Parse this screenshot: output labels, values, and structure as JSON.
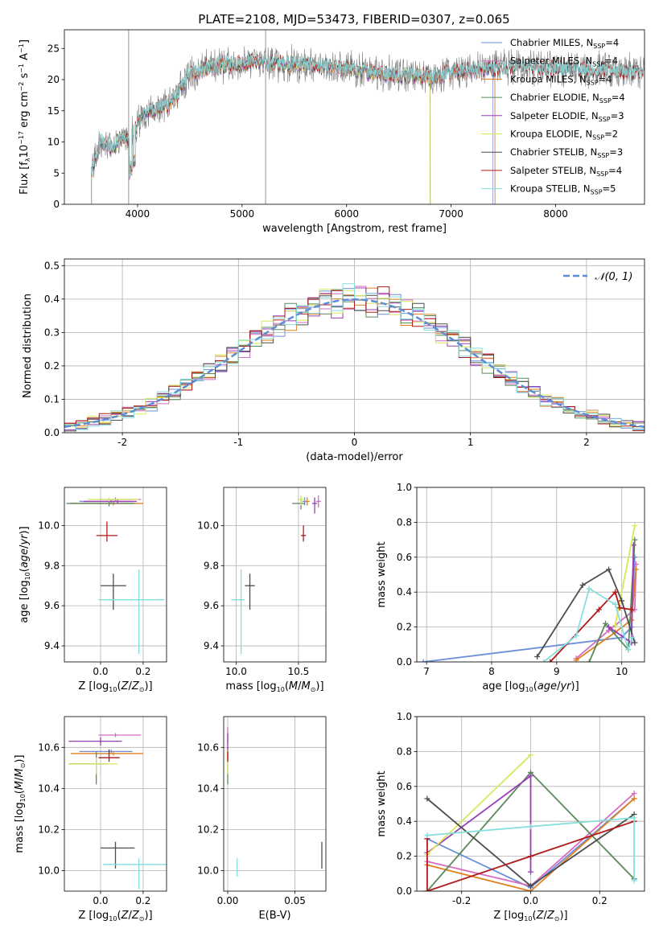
{
  "figure_title": "PLATE=2108, MJD=53473, FIBERID=0307, z=0.065",
  "colors": {
    "Chabrier MILES": "#6c8fd8",
    "Salpeter MILES": "#d46cc0",
    "Kroupa MILES": "#e0801f",
    "Chabrier ELODIE": "#5a8a5a",
    "Salpeter ELODIE": "#9b3db5",
    "Kroupa ELODIE": "#d6e85a",
    "Chabrier STELIB": "#4d4d4d",
    "Salpeter STELIB": "#b01a1a",
    "Kroupa STELIB": "#86dede",
    "gaussian": "#5b8ed6"
  },
  "chart_data": [
    {
      "id": "spectrum",
      "type": "line",
      "title": "PLATE=2108, MJD=53473, FIBERID=0307, z=0.065",
      "xlabel": "wavelength [Angstrom, rest frame]",
      "ylabel": "Flux [f_λ 10^-17 erg cm^-2 s^-1 A^-1]",
      "xlim": [
        3300,
        8850
      ],
      "ylim": [
        0,
        28
      ],
      "xticks": [
        4000,
        5000,
        6000,
        7000,
        8000
      ],
      "yticks": [
        0,
        5,
        10,
        15,
        20,
        25
      ],
      "legend_position": "top-right",
      "legend": [
        {
          "name": "Chabrier MILES",
          "label": "Chabrier MILES, N",
          "sub": "SSP",
          "tail": "=4"
        },
        {
          "name": "Salpeter MILES",
          "label": "Salpeter MILES, N",
          "sub": "SSP",
          "tail": "=4"
        },
        {
          "name": "Kroupa MILES",
          "label": "Kroupa MILES, N",
          "sub": "SSP",
          "tail": "=4"
        },
        {
          "name": "Chabrier ELODIE",
          "label": "Chabrier ELODIE, N",
          "sub": "SSP",
          "tail": "=4"
        },
        {
          "name": "Salpeter ELODIE",
          "label": "Salpeter ELODIE, N",
          "sub": "SSP",
          "tail": "=3"
        },
        {
          "name": "Kroupa ELODIE",
          "label": "Kroupa ELODIE, N",
          "sub": "SSP",
          "tail": "=2"
        },
        {
          "name": "Chabrier STELIB",
          "label": "Chabrier STELIB, N",
          "sub": "SSP",
          "tail": "=3"
        },
        {
          "name": "Salpeter STELIB",
          "label": "Salpeter STELIB, N",
          "sub": "SSP",
          "tail": "=4"
        },
        {
          "name": "Kroupa STELIB",
          "label": "Kroupa STELIB, N",
          "sub": "SSP",
          "tail": "=5"
        }
      ],
      "continuum": {
        "x": [
          3560,
          3650,
          3750,
          3850,
          3920,
          4000,
          4100,
          4200,
          4300,
          4400,
          4500,
          4700,
          4900,
          5100,
          5300,
          5500,
          5800,
          6100,
          6400,
          6800,
          7200,
          7600,
          8000,
          8400,
          8850
        ],
        "y": [
          5,
          10,
          9,
          11,
          10,
          13,
          15,
          15.5,
          16,
          18,
          21,
          22,
          22.5,
          23,
          22.5,
          22.5,
          22,
          21.5,
          21,
          20.5,
          21.5,
          22,
          21.8,
          21.5,
          21
        ]
      },
      "model_ends": {
        "Chabrier MILES": 7400,
        "Salpeter MILES": 7420,
        "Kroupa MILES": 7420,
        "Chabrier ELODIE": 6800,
        "Salpeter ELODIE": 6800,
        "Kroupa ELODIE": 6800
      },
      "data_spikes": [
        3915,
        5225
      ]
    },
    {
      "id": "residuals",
      "type": "histogram",
      "xlabel": "(data-model)/error",
      "ylabel": "Normed distribution",
      "xlim": [
        -2.5,
        2.5
      ],
      "ylim": [
        0,
        0.52
      ],
      "xticks": [
        -2,
        -1,
        0,
        1,
        2
      ],
      "yticks": [
        0,
        0.1,
        0.2,
        0.3,
        0.4,
        0.5
      ],
      "legend_position": "top-right",
      "gaussian_label": "𝒩(0, 1)",
      "bin_width": 0.1,
      "bin_start": -2.5,
      "amplitude_offsets": [
        0.03,
        -0.02,
        0.04,
        -0.03,
        0.05,
        -0.04,
        0.02,
        -0.05,
        0.06,
        -0.01,
        0.03,
        -0.03,
        0.05,
        -0.02,
        0.04,
        -0.06,
        0.02,
        0.05,
        -0.04,
        0.03
      ]
    },
    {
      "id": "age_vs_Z",
      "type": "errorbar",
      "xlabel": "Z [log10(Z/Z⊙)]",
      "ylabel": "age  [log10(age/yr)]",
      "xlim": [
        -0.17,
        0.31
      ],
      "ylim": [
        9.32,
        10.19
      ],
      "xticks": [
        0.0,
        0.2
      ],
      "yticks": [
        9.4,
        9.6,
        9.8,
        10.0
      ],
      "points": [
        {
          "s": "Chabrier MILES",
          "x": 0.05,
          "y": 10.12,
          "xe": [
            0.15,
            0.1
          ],
          "ye": [
            0.01,
            0.01
          ]
        },
        {
          "s": "Salpeter MILES",
          "x": 0.07,
          "y": 10.13,
          "xe": [
            0.08,
            0.12
          ],
          "ye": [
            0.01,
            0.01
          ]
        },
        {
          "s": "Kroupa MILES",
          "x": 0.06,
          "y": 10.11,
          "xe": [
            0.2,
            0.14
          ],
          "ye": [
            0.01,
            0.01
          ]
        },
        {
          "s": "Chabrier ELODIE",
          "x": 0.04,
          "y": 10.11,
          "xe": [
            0.2,
            0.12
          ],
          "ye": [
            0.015,
            0.015
          ]
        },
        {
          "s": "Salpeter ELODIE",
          "x": 0.08,
          "y": 10.12,
          "xe": [
            0.16,
            0.09
          ],
          "ye": [
            0.01,
            0.01
          ]
        },
        {
          "s": "Kroupa ELODIE",
          "x": 0.04,
          "y": 10.13,
          "xe": [
            0.1,
            0.14
          ],
          "ye": [
            0.01,
            0.01
          ]
        },
        {
          "s": "Chabrier STELIB",
          "x": 0.06,
          "y": 9.7,
          "xe": [
            0.06,
            0.06
          ],
          "ye": [
            0.12,
            0.06
          ]
        },
        {
          "s": "Salpeter STELIB",
          "x": 0.03,
          "y": 9.95,
          "xe": [
            0.05,
            0.05
          ],
          "ye": [
            0.03,
            0.07
          ]
        },
        {
          "s": "Kroupa STELIB",
          "x": 0.18,
          "y": 9.63,
          "xe": [
            0.19,
            0.12
          ],
          "ye": [
            0.27,
            0.15
          ]
        }
      ]
    },
    {
      "id": "age_vs_mass",
      "type": "errorbar",
      "xlabel": "mass [log10(M/M⊙)]",
      "ylabel": "",
      "xlim": [
        9.9,
        10.72
      ],
      "ylim": [
        9.32,
        10.19
      ],
      "xticks": [
        10.0,
        10.5
      ],
      "yticks": [
        9.4,
        9.6,
        9.8,
        10.0
      ],
      "points": [
        {
          "s": "Chabrier MILES",
          "x": 10.55,
          "y": 10.12,
          "xe": [
            0.02,
            0.02
          ],
          "ye": [
            0.02,
            0.02
          ]
        },
        {
          "s": "Salpeter MILES",
          "x": 10.66,
          "y": 10.12,
          "xe": [
            0.02,
            0.02
          ],
          "ye": [
            0.03,
            0.03
          ]
        },
        {
          "s": "Kroupa MILES",
          "x": 10.57,
          "y": 10.12,
          "xe": [
            0.02,
            0.02
          ],
          "ye": [
            0.02,
            0.02
          ]
        },
        {
          "s": "Chabrier ELODIE",
          "x": 10.52,
          "y": 10.11,
          "xe": [
            0.07,
            0.03
          ],
          "ye": [
            0.03,
            0.03
          ]
        },
        {
          "s": "Salpeter ELODIE",
          "x": 10.63,
          "y": 10.11,
          "xe": [
            0.02,
            0.02
          ],
          "ye": [
            0.05,
            0.03
          ]
        },
        {
          "s": "Kroupa ELODIE",
          "x": 10.52,
          "y": 10.13,
          "xe": [
            0.03,
            0.03
          ],
          "ye": [
            0.03,
            0.02
          ]
        },
        {
          "s": "Chabrier STELIB",
          "x": 10.11,
          "y": 9.7,
          "xe": [
            0.04,
            0.04
          ],
          "ye": [
            0.12,
            0.06
          ]
        },
        {
          "s": "Salpeter STELIB",
          "x": 10.54,
          "y": 9.95,
          "xe": [
            0.02,
            0.02
          ],
          "ye": [
            0.03,
            0.05
          ]
        },
        {
          "s": "Kroupa STELIB",
          "x": 10.04,
          "y": 9.63,
          "xe": [
            0.08,
            0.03
          ],
          "ye": [
            0.27,
            0.15
          ]
        }
      ]
    },
    {
      "id": "weight_vs_age",
      "type": "line",
      "xlabel": "age  [log10(age/yr)]",
      "ylabel": "mass weight",
      "xlim": [
        6.85,
        10.35
      ],
      "ylim": [
        0,
        1
      ],
      "xticks": [
        7,
        8,
        9,
        10
      ],
      "yticks": [
        0.0,
        0.2,
        0.4,
        0.6,
        0.8,
        1.0
      ],
      "series": [
        {
          "s": "Chabrier MILES",
          "x": [
            6.95,
            10.0,
            10.15,
            10.2
          ],
          "y": [
            0.0,
            0.14,
            0.2,
            0.6
          ]
        },
        {
          "s": "Salpeter MILES",
          "x": [
            9.3,
            9.8,
            10.2,
            10.22
          ],
          "y": [
            0.02,
            0.18,
            0.3,
            0.56
          ]
        },
        {
          "s": "Kroupa MILES",
          "x": [
            9.3,
            9.9,
            10.15,
            10.22
          ],
          "y": [
            0.01,
            0.17,
            0.24,
            0.53
          ]
        },
        {
          "s": "Chabrier ELODIE",
          "x": [
            9.5,
            9.75,
            10.1,
            10.2
          ],
          "y": [
            0.0,
            0.22,
            0.07,
            0.7
          ]
        },
        {
          "s": "Salpeter ELODIE",
          "x": [
            9.8,
            10.15,
            10.18
          ],
          "y": [
            0.2,
            0.11,
            0.67
          ]
        },
        {
          "s": "Kroupa ELODIE",
          "x": [
            9.9,
            10.2
          ],
          "y": [
            0.21,
            0.78
          ]
        },
        {
          "s": "Chabrier STELIB",
          "x": [
            8.7,
            9.4,
            9.8,
            10.0,
            10.2
          ],
          "y": [
            0.03,
            0.44,
            0.53,
            0.35,
            0.11
          ]
        },
        {
          "s": "Salpeter STELIB",
          "x": [
            8.9,
            9.65,
            9.9,
            9.97,
            10.15
          ],
          "y": [
            0.0,
            0.3,
            0.4,
            0.31,
            0.3
          ]
        },
        {
          "s": "Kroupa STELIB",
          "x": [
            8.8,
            9.3,
            9.5,
            9.9,
            10.1,
            10.16
          ],
          "y": [
            0.0,
            0.15,
            0.42,
            0.33,
            0.07,
            0.14
          ]
        }
      ]
    },
    {
      "id": "mass_vs_Z",
      "type": "errorbar",
      "xlabel": "Z [log10(Z/Z⊙)]",
      "ylabel": "mass [log10(M/M⊙)]",
      "xlim": [
        -0.17,
        0.31
      ],
      "ylim": [
        9.9,
        10.75
      ],
      "xticks": [
        0.0,
        0.2
      ],
      "yticks": [
        10.0,
        10.2,
        10.4,
        10.6
      ],
      "points": [
        {
          "s": "Chabrier MILES",
          "x": 0.05,
          "y": 10.58,
          "xe": [
            0.15,
            0.1
          ],
          "ye": [
            0.01,
            0.01
          ]
        },
        {
          "s": "Salpeter MILES",
          "x": 0.07,
          "y": 10.66,
          "xe": [
            0.08,
            0.12
          ],
          "ye": [
            0.01,
            0.01
          ]
        },
        {
          "s": "Kroupa MILES",
          "x": 0.06,
          "y": 10.57,
          "xe": [
            0.2,
            0.14
          ],
          "ye": [
            0.01,
            0.01
          ]
        },
        {
          "s": "Chabrier ELODIE",
          "x": -0.02,
          "y": 10.52,
          "xe": [
            0.13,
            0.05
          ],
          "ye": [
            0.1,
            0.06
          ]
        },
        {
          "s": "Salpeter ELODIE",
          "x": 0.0,
          "y": 10.63,
          "xe": [
            0.15,
            0.1
          ],
          "ye": [
            0.02,
            0.02
          ]
        },
        {
          "s": "Kroupa ELODIE",
          "x": -0.02,
          "y": 10.52,
          "xe": [
            0.13,
            0.1
          ],
          "ye": [
            0.05,
            0.03
          ]
        },
        {
          "s": "Chabrier STELIB",
          "x": 0.07,
          "y": 10.11,
          "xe": [
            0.07,
            0.09
          ],
          "ye": [
            0.1,
            0.03
          ]
        },
        {
          "s": "Salpeter STELIB",
          "x": 0.04,
          "y": 10.55,
          "xe": [
            0.05,
            0.05
          ],
          "ye": [
            0.02,
            0.04
          ]
        },
        {
          "s": "Kroupa STELIB",
          "x": 0.18,
          "y": 10.03,
          "xe": [
            0.17,
            0.13
          ],
          "ye": [
            0.12,
            0.03
          ]
        }
      ]
    },
    {
      "id": "mass_vs_ebv",
      "type": "errorbar",
      "xlabel": "E(B-V)",
      "ylabel": "",
      "xlim": [
        -0.003,
        0.073
      ],
      "ylim": [
        9.9,
        10.75
      ],
      "xticks": [
        0.0,
        0.05
      ],
      "yticks": [
        10.0,
        10.2,
        10.4,
        10.6
      ],
      "points": [
        {
          "s": "Chabrier MILES",
          "x": 0.0,
          "y": 10.58,
          "xe": [
            0.0,
            0.0
          ],
          "ye": [
            0.02,
            0.02
          ]
        },
        {
          "s": "Salpeter MILES",
          "x": 0.0,
          "y": 10.66,
          "xe": [
            0.0,
            0.0
          ],
          "ye": [
            0.04,
            0.04
          ]
        },
        {
          "s": "Kroupa MILES",
          "x": 0.0,
          "y": 10.57,
          "xe": [
            0.0,
            0.0
          ],
          "ye": [
            0.03,
            0.03
          ]
        },
        {
          "s": "Chabrier ELODIE",
          "x": 0.0,
          "y": 10.5,
          "xe": [
            0.0,
            0.0
          ],
          "ye": [
            0.08,
            0.06
          ]
        },
        {
          "s": "Salpeter ELODIE",
          "x": 0.0,
          "y": 10.63,
          "xe": [
            0.0,
            0.0
          ],
          "ye": [
            0.04,
            0.04
          ]
        },
        {
          "s": "Kroupa ELODIE",
          "x": 0.0,
          "y": 10.52,
          "xe": [
            0.0,
            0.0
          ],
          "ye": [
            0.05,
            0.05
          ]
        },
        {
          "s": "Chabrier STELIB",
          "x": 0.07,
          "y": 10.07,
          "xe": [
            0.0,
            0.0
          ],
          "ye": [
            0.06,
            0.07
          ]
        },
        {
          "s": "Salpeter STELIB",
          "x": 0.0,
          "y": 10.55,
          "xe": [
            0.0,
            0.0
          ],
          "ye": [
            0.02,
            0.03
          ]
        },
        {
          "s": "Kroupa STELIB",
          "x": 0.007,
          "y": 10.03,
          "xe": [
            0.0,
            0.0
          ],
          "ye": [
            0.06,
            0.03
          ]
        }
      ]
    },
    {
      "id": "weight_vs_Z",
      "type": "line",
      "xlabel": "Z [log10(Z/Z⊙)]",
      "ylabel": "mass weight",
      "xlim": [
        -0.33,
        0.33
      ],
      "ylim": [
        0,
        1
      ],
      "xticks": [
        -0.2,
        0.0,
        0.2
      ],
      "yticks": [
        0.0,
        0.2,
        0.4,
        0.6,
        0.8,
        1.0
      ],
      "series": [
        {
          "s": "Chabrier MILES",
          "x": [
            -0.3,
            0.0,
            0.3
          ],
          "y": [
            0.3,
            0.02,
            0.53
          ]
        },
        {
          "s": "Salpeter MILES",
          "x": [
            -0.3,
            0.0,
            0.3
          ],
          "y": [
            0.17,
            0.03,
            0.56
          ]
        },
        {
          "s": "Kroupa MILES",
          "x": [
            -0.3,
            0.0,
            0.3
          ],
          "y": [
            0.15,
            0.0,
            0.53
          ]
        },
        {
          "s": "Chabrier ELODIE",
          "x": [
            -0.3,
            0.0,
            0.3
          ],
          "y": [
            0.0,
            0.68,
            0.07
          ]
        },
        {
          "s": "Salpeter ELODIE",
          "x": [
            -0.3,
            0.0,
            0.0
          ],
          "y": [
            0.22,
            0.66,
            0.11
          ]
        },
        {
          "s": "Kroupa ELODIE",
          "x": [
            -0.3,
            0.0
          ],
          "y": [
            0.21,
            0.78
          ]
        },
        {
          "s": "Chabrier STELIB",
          "x": [
            -0.3,
            0.0,
            0.3
          ],
          "y": [
            0.53,
            0.03,
            0.44
          ]
        },
        {
          "s": "Salpeter STELIB",
          "x": [
            -0.3,
            -0.3,
            0.0,
            0.3
          ],
          "y": [
            0.3,
            0.0,
            0.2,
            0.4
          ]
        },
        {
          "s": "Kroupa STELIB",
          "x": [
            -0.3,
            0.0,
            0.3,
            0.3
          ],
          "y": [
            0.32,
            0.37,
            0.42,
            0.06
          ]
        }
      ]
    }
  ]
}
